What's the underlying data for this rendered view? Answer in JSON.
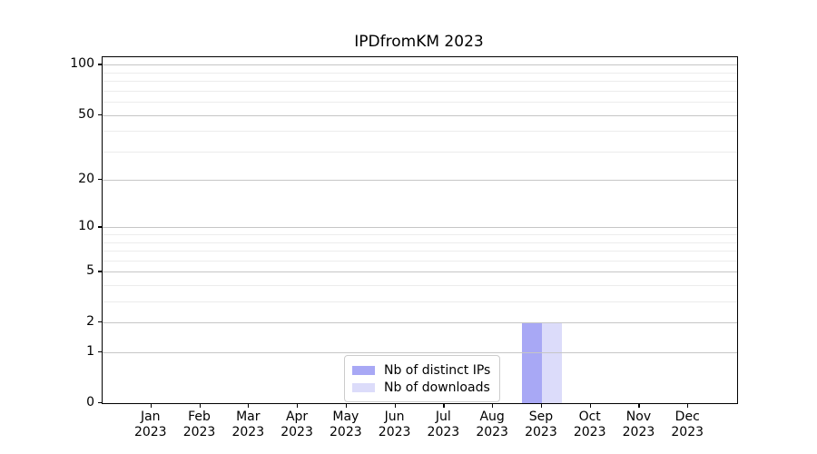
{
  "chart_data": {
    "type": "bar",
    "title": "IPDfromKM 2023",
    "months": [
      "Jan",
      "Feb",
      "Mar",
      "Apr",
      "May",
      "Jun",
      "Jul",
      "Aug",
      "Sep",
      "Oct",
      "Nov",
      "Dec"
    ],
    "year_label": "2023",
    "categories": [
      "Jan 2023",
      "Feb 2023",
      "Mar 2023",
      "Apr 2023",
      "May 2023",
      "Jun 2023",
      "Jul 2023",
      "Aug 2023",
      "Sep 2023",
      "Oct 2023",
      "Nov 2023",
      "Dec 2023"
    ],
    "series": [
      {
        "name": "Nb of distinct IPs",
        "color": "#a8a8f5",
        "values": [
          0,
          0,
          0,
          0,
          0,
          0,
          0,
          0,
          2,
          0,
          0,
          0
        ]
      },
      {
        "name": "Nb of downloads",
        "color": "#dcdcfa",
        "values": [
          0,
          0,
          0,
          0,
          0,
          0,
          0,
          0,
          2,
          0,
          0,
          0
        ]
      }
    ],
    "xlabel": "",
    "ylabel": "",
    "y_scale": "log1p",
    "y_ticks": [
      0,
      1,
      2,
      5,
      10,
      20,
      50,
      100
    ],
    "y_minor_gridlines": [
      3,
      4,
      6,
      7,
      8,
      9,
      30,
      40,
      60,
      70,
      80,
      90
    ],
    "ylim": [
      0,
      111
    ],
    "grid": "horizontal major and minor, drawn above bars",
    "legend_position": "inside lower center"
  },
  "colors": {
    "background": "#ffffff",
    "axis": "#000000",
    "major_grid": "#c6c6c6",
    "minor_grid": "#ececec",
    "legend_border": "#cccccc",
    "text": "#000000"
  }
}
